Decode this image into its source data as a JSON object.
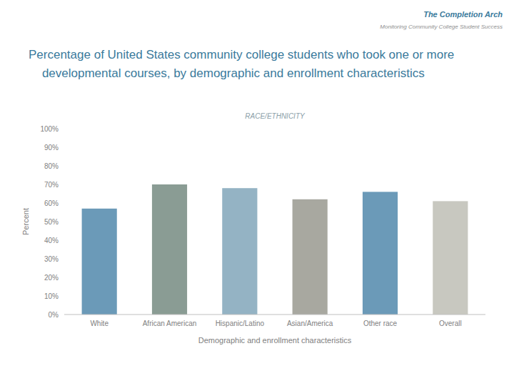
{
  "chart_data": {
    "type": "bar",
    "title": [
      "Percentage of United States community college students who took one or more",
      "    developmental courses, by demographic and enrollment characteristics"
    ],
    "subtitle": "RACE/ETHNICITY",
    "annotations": [
      "The Completion Arch",
      "Monitoring Community College Student Success"
    ],
    "xlabel": "Demographic and enrollment characteristics",
    "ylabel": "Percent",
    "categories": [
      "White",
      "African American",
      "Hispanic/Latino",
      "Asian/America",
      "Other race",
      "Overall"
    ],
    "values": [
      0.57,
      0.7,
      0.68,
      0.62,
      0.66,
      0.61
    ],
    "colors": [
      "#6b9ab8",
      "#8a9c94",
      "#94b3c4",
      "#a8a8a0",
      "#6b9ab8",
      "#c8c8c0"
    ],
    "ylim": [
      0,
      1.0
    ],
    "yticks": [
      {
        "value": 0.0,
        "label": "0%"
      },
      {
        "value": 0.1,
        "label": "10%"
      },
      {
        "value": 0.2,
        "label": "20%"
      },
      {
        "value": 0.3,
        "label": "30%"
      },
      {
        "value": 0.4,
        "label": "40%"
      },
      {
        "value": 0.5,
        "label": "50%"
      },
      {
        "value": 0.6,
        "label": "60%"
      },
      {
        "value": 0.7,
        "label": "70%"
      },
      {
        "value": 0.8,
        "label": "80%"
      },
      {
        "value": 0.9,
        "label": "90%"
      },
      {
        "value": 1.0,
        "label": "100%"
      }
    ],
    "grid": false
  }
}
